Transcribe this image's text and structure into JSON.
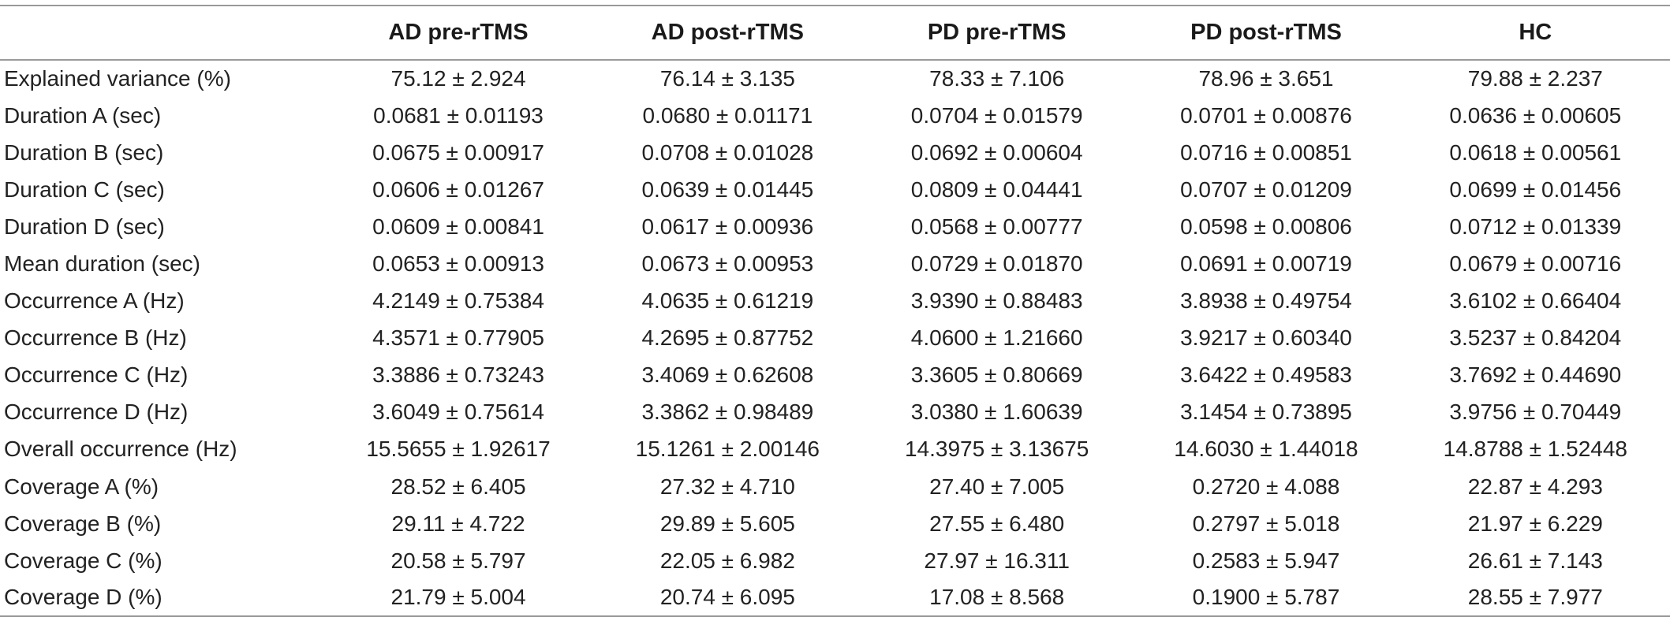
{
  "table": {
    "corner_label": "",
    "columns": [
      "AD pre-rTMS",
      "AD post-rTMS",
      "PD pre-rTMS",
      "PD post-rTMS",
      "HC"
    ],
    "rows": [
      {
        "label": "Explained variance (%)",
        "values": [
          "75.12 ± 2.924",
          "76.14 ± 3.135",
          "78.33 ± 7.106",
          "78.96 ± 3.651",
          "79.88 ± 2.237"
        ]
      },
      {
        "label": "Duration A (sec)",
        "values": [
          "0.0681 ± 0.01193",
          "0.0680 ± 0.01171",
          "0.0704 ± 0.01579",
          "0.0701 ± 0.00876",
          "0.0636 ± 0.00605"
        ]
      },
      {
        "label": "Duration B (sec)",
        "values": [
          "0.0675 ± 0.00917",
          "0.0708 ± 0.01028",
          "0.0692 ± 0.00604",
          "0.0716 ± 0.00851",
          "0.0618 ± 0.00561"
        ]
      },
      {
        "label": "Duration C (sec)",
        "values": [
          "0.0606 ± 0.01267",
          "0.0639 ± 0.01445",
          "0.0809 ± 0.04441",
          "0.0707 ± 0.01209",
          "0.0699 ± 0.01456"
        ]
      },
      {
        "label": "Duration D (sec)",
        "values": [
          "0.0609 ± 0.00841",
          "0.0617 ± 0.00936",
          "0.0568 ± 0.00777",
          "0.0598 ± 0.00806",
          "0.0712 ± 0.01339"
        ]
      },
      {
        "label": "Mean duration (sec)",
        "values": [
          "0.0653 ± 0.00913",
          "0.0673 ± 0.00953",
          "0.0729 ± 0.01870",
          "0.0691 ± 0.00719",
          "0.0679 ± 0.00716"
        ]
      },
      {
        "label": "Occurrence A (Hz)",
        "values": [
          "4.2149 ± 0.75384",
          "4.0635 ± 0.61219",
          "3.9390 ± 0.88483",
          "3.8938 ± 0.49754",
          "3.6102 ± 0.66404"
        ]
      },
      {
        "label": "Occurrence B (Hz)",
        "values": [
          "4.3571 ± 0.77905",
          "4.2695 ± 0.87752",
          "4.0600 ± 1.21660",
          "3.9217 ± 0.60340",
          "3.5237 ± 0.84204"
        ]
      },
      {
        "label": "Occurrence C (Hz)",
        "values": [
          "3.3886 ± 0.73243",
          "3.4069 ± 0.62608",
          "3.3605 ± 0.80669",
          "3.6422 ± 0.49583",
          "3.7692 ± 0.44690"
        ]
      },
      {
        "label": "Occurrence D (Hz)",
        "values": [
          "3.6049 ± 0.75614",
          "3.3862 ± 0.98489",
          "3.0380 ± 1.60639",
          "3.1454 ± 0.73895",
          "3.9756 ± 0.70449"
        ]
      },
      {
        "label": "Overall occurrence (Hz)",
        "values": [
          "15.5655 ± 1.92617",
          "15.1261 ± 2.00146",
          "14.3975 ± 3.13675",
          "14.6030 ± 1.44018",
          "14.8788 ± 1.52448"
        ]
      },
      {
        "label": "Coverage A (%)",
        "values": [
          "28.52 ± 6.405",
          "27.32 ± 4.710",
          "27.40 ± 7.005",
          "0.2720 ± 4.088",
          "22.87 ± 4.293"
        ]
      },
      {
        "label": "Coverage B (%)",
        "values": [
          "29.11 ± 4.722",
          "29.89 ± 5.605",
          "27.55 ± 6.480",
          "0.2797 ± 5.018",
          "21.97 ± 6.229"
        ]
      },
      {
        "label": "Coverage C (%)",
        "values": [
          "20.58 ± 5.797",
          "22.05 ± 6.982",
          "27.97 ± 16.311",
          "0.2583 ± 5.947",
          "26.61 ± 7.143"
        ]
      },
      {
        "label": "Coverage D (%)",
        "values": [
          "21.79 ± 5.004",
          "20.74 ± 6.095",
          "17.08 ± 8.568",
          "0.1900 ± 5.787",
          "28.55 ± 7.977"
        ]
      }
    ]
  }
}
